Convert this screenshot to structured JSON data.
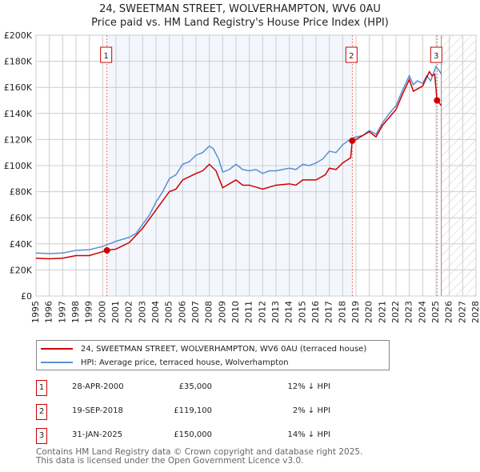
{
  "chart_data": {
    "type": "line",
    "title": "24, SWEETMAN STREET, WOLVERHAMPTON, WV6 0AU",
    "subtitle": "Price paid vs. HM Land Registry's House Price Index (HPI)",
    "xlim": [
      1995,
      2028
    ],
    "ylim": [
      0,
      200000
    ],
    "x_ticks": [
      "1995",
      "1996",
      "1997",
      "1998",
      "1999",
      "2000",
      "2001",
      "2002",
      "2003",
      "2004",
      "2005",
      "2006",
      "2007",
      "2008",
      "2009",
      "2010",
      "2011",
      "2012",
      "2013",
      "2014",
      "2015",
      "2016",
      "2017",
      "2018",
      "2019",
      "2020",
      "2021",
      "2022",
      "2023",
      "2024",
      "2025",
      "2026",
      "2027",
      "2028"
    ],
    "y_ticks": [
      {
        "v": 0,
        "label": "£0"
      },
      {
        "v": 20000,
        "label": "£20K"
      },
      {
        "v": 40000,
        "label": "£40K"
      },
      {
        "v": 60000,
        "label": "£60K"
      },
      {
        "v": 80000,
        "label": "£80K"
      },
      {
        "v": 100000,
        "label": "£100K"
      },
      {
        "v": 120000,
        "label": "£120K"
      },
      {
        "v": 140000,
        "label": "£140K"
      },
      {
        "v": 160000,
        "label": "£160K"
      },
      {
        "v": 180000,
        "label": "£180K"
      },
      {
        "v": 200000,
        "label": "£200K"
      }
    ],
    "grid": true,
    "shaded_range": [
      2000.32,
      2018.72
    ],
    "forecast_from": 2025.4,
    "series": [
      {
        "name": "24, SWEETMAN STREET, WOLVERHAMPTON, WV6 0AU (terraced house)",
        "color": "#cc0000",
        "points": [
          [
            1995,
            29
          ],
          [
            1996,
            28.5
          ],
          [
            1997,
            29
          ],
          [
            1998,
            31
          ],
          [
            1999,
            31
          ],
          [
            2000.32,
            35
          ],
          [
            2001,
            36
          ],
          [
            2002,
            41
          ],
          [
            2003,
            52
          ],
          [
            2004,
            66
          ],
          [
            2005,
            80
          ],
          [
            2005.5,
            82
          ],
          [
            2006,
            89
          ],
          [
            2007,
            94
          ],
          [
            2007.5,
            96
          ],
          [
            2008,
            101
          ],
          [
            2008.5,
            96
          ],
          [
            2009,
            83
          ],
          [
            2009.5,
            86
          ],
          [
            2010,
            89
          ],
          [
            2010.5,
            85
          ],
          [
            2011,
            85
          ],
          [
            2012,
            82
          ],
          [
            2013,
            85
          ],
          [
            2014,
            86
          ],
          [
            2014.5,
            85
          ],
          [
            2015,
            89
          ],
          [
            2016,
            89
          ],
          [
            2016.7,
            93
          ],
          [
            2017,
            98
          ],
          [
            2017.5,
            97
          ],
          [
            2018,
            102
          ],
          [
            2018.6,
            106
          ],
          [
            2018.72,
            119.1
          ],
          [
            2019,
            120
          ],
          [
            2020,
            126
          ],
          [
            2020.5,
            122
          ],
          [
            2021,
            131
          ],
          [
            2022,
            143
          ],
          [
            2022.5,
            155
          ],
          [
            2023,
            166
          ],
          [
            2023.3,
            157
          ],
          [
            2024,
            161
          ],
          [
            2024.5,
            172
          ],
          [
            2024.7,
            169
          ],
          [
            2024.9,
            170
          ],
          [
            2025.08,
            150
          ],
          [
            2025.4,
            146
          ]
        ]
      },
      {
        "name": "HPI: Average price, terraced house, Wolverhampton",
        "color": "#5b8fd0",
        "points": [
          [
            1995,
            33
          ],
          [
            1996,
            32.5
          ],
          [
            1997,
            33
          ],
          [
            1998,
            35
          ],
          [
            1999,
            35.5
          ],
          [
            2000,
            38
          ],
          [
            2000.5,
            40
          ],
          [
            2001,
            42
          ],
          [
            2002,
            45
          ],
          [
            2002.5,
            48
          ],
          [
            2003,
            55
          ],
          [
            2003.5,
            62
          ],
          [
            2004,
            72
          ],
          [
            2004.5,
            80
          ],
          [
            2005,
            90
          ],
          [
            2005.5,
            93
          ],
          [
            2006,
            101
          ],
          [
            2006.5,
            103
          ],
          [
            2007,
            108
          ],
          [
            2007.5,
            110
          ],
          [
            2008,
            115
          ],
          [
            2008.3,
            113
          ],
          [
            2008.7,
            105
          ],
          [
            2009,
            95
          ],
          [
            2009.5,
            97
          ],
          [
            2010,
            101
          ],
          [
            2010.5,
            97
          ],
          [
            2011,
            96
          ],
          [
            2011.5,
            97
          ],
          [
            2012,
            94
          ],
          [
            2012.5,
            96
          ],
          [
            2013,
            96
          ],
          [
            2013.5,
            97
          ],
          [
            2014,
            98
          ],
          [
            2014.5,
            97
          ],
          [
            2015,
            101
          ],
          [
            2015.5,
            100
          ],
          [
            2016,
            102
          ],
          [
            2016.5,
            105
          ],
          [
            2017,
            111
          ],
          [
            2017.5,
            110
          ],
          [
            2018,
            116
          ],
          [
            2018.7,
            121
          ],
          [
            2019,
            122
          ],
          [
            2019.5,
            123
          ],
          [
            2020,
            127
          ],
          [
            2020.5,
            124
          ],
          [
            2021,
            133
          ],
          [
            2021.5,
            140
          ],
          [
            2022,
            146
          ],
          [
            2022.5,
            158
          ],
          [
            2023,
            169
          ],
          [
            2023.3,
            162
          ],
          [
            2023.6,
            165
          ],
          [
            2024,
            163
          ],
          [
            2024.3,
            169
          ],
          [
            2024.6,
            165
          ],
          [
            2025,
            176
          ],
          [
            2025.3,
            172
          ],
          [
            2025.4,
            170
          ]
        ]
      }
    ],
    "point_units": "thousand GBP",
    "sales": [
      {
        "id": "1",
        "x": 2000.32,
        "value": 35,
        "date": "28-APR-2000",
        "price": "£35,000",
        "hpi": "12% ↓ HPI"
      },
      {
        "id": "2",
        "x": 2018.72,
        "value": 119.1,
        "date": "19-SEP-2018",
        "price": "£119,100",
        "hpi": "2% ↓ HPI"
      },
      {
        "id": "3",
        "x": 2025.08,
        "value": 150,
        "date": "31-JAN-2025",
        "price": "£150,000",
        "hpi": "14% ↓ HPI"
      }
    ]
  },
  "footer": {
    "line1": "Contains HM Land Registry data © Crown copyright and database right 2025.",
    "line2": "This data is licensed under the Open Government Licence v3.0."
  }
}
